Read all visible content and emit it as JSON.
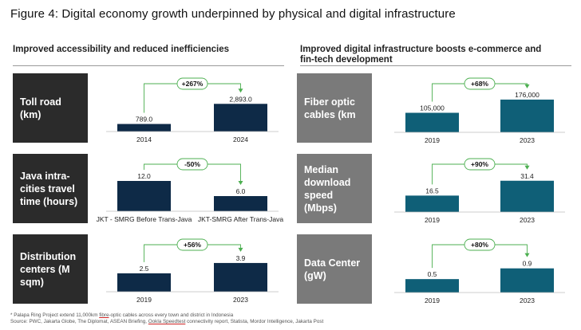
{
  "figure_title": "Figure 4: Digital economy growth underpinned by physical and digital infrastructure",
  "sections": {
    "left_title": "Improved accessibility and reduced inefficiencies",
    "right_title_line1": "Improved digital infrastructure boosts e-commerce and",
    "right_title_line2": "fin-tech development"
  },
  "panels": {
    "toll_road_line1": "Toll road",
    "toll_road_line2": "(km)",
    "java_line1": "Java intra-",
    "java_line2": "cities travel",
    "java_line3": "time (hours)",
    "dist_line1": "Distribution",
    "dist_line2": "centers (M",
    "dist_line3": "sqm)",
    "fiber_line1": "Fiber optic",
    "fiber_line2": "cables (km",
    "median_line1": "Median",
    "median_line2": "download",
    "median_line3": "speed (Mbps)",
    "dc_line1": "Data Center",
    "dc_line2": "(gW)"
  },
  "footnotes": {
    "line1_pre": "* Palapa Ring Project extend 11,000km ",
    "line1_ul": "fibre",
    "line1_post": "-optic cables across every town and district in Indonesia",
    "line2_pre": "Source: PWC, Jakarta Globe, The Diplomat, ASEAN Briefing, ",
    "line2_ul": "Ookla Speedtest",
    "line2_post": " connectivity report, Statista, Mordor Intelligence, Jakarta Post"
  },
  "colors": {
    "dark_bar": "#0e2a47",
    "teal_bar": "#0f5f77",
    "arrow_green": "#4caf50",
    "panel_dark": "#2b2b2b",
    "panel_gray": "#7a7a7a"
  },
  "chart_data": [
    {
      "type": "bar",
      "title": "Toll road (km)",
      "categories": [
        "2014",
        "2024"
      ],
      "values": [
        789.0,
        2893.0
      ],
      "labels": [
        "789.0",
        "2,893.0"
      ],
      "change": "+267%",
      "color": "dark",
      "ylim": [
        0,
        3000
      ]
    },
    {
      "type": "bar",
      "title": "Java intra-cities travel time (hours)",
      "categories": [
        "JKT - SMRG Before Trans-Java",
        "JKT-SMRG After Trans-Java"
      ],
      "values": [
        12.0,
        6.0
      ],
      "labels": [
        "12.0",
        "6.0"
      ],
      "change": "-50%",
      "color": "dark",
      "ylim": [
        0,
        12
      ]
    },
    {
      "type": "bar",
      "title": "Distribution centers (M sqm)",
      "categories": [
        "2019",
        "2023"
      ],
      "values": [
        2.5,
        3.9
      ],
      "labels": [
        "2.5",
        "3.9"
      ],
      "change": "+56%",
      "color": "dark",
      "ylim": [
        0,
        4
      ]
    },
    {
      "type": "bar",
      "title": "Fiber optic cables (km",
      "categories": [
        "2019",
        "2023"
      ],
      "values": [
        105000,
        176000
      ],
      "labels": [
        "105,000",
        "176,000"
      ],
      "change": "+68%",
      "color": "teal",
      "ylim": [
        0,
        180000
      ]
    },
    {
      "type": "bar",
      "title": "Median download speed (Mbps)",
      "categories": [
        "2019",
        "2023"
      ],
      "values": [
        16.5,
        31.4
      ],
      "labels": [
        "16.5",
        "31.4"
      ],
      "change": "+90%",
      "color": "teal",
      "ylim": [
        0,
        32
      ]
    },
    {
      "type": "bar",
      "title": "Data Center (gW)",
      "categories": [
        "2019",
        "2023"
      ],
      "values": [
        0.5,
        0.9
      ],
      "labels": [
        "0.5",
        "0.9"
      ],
      "change": "+80%",
      "color": "teal",
      "ylim": [
        0,
        0.92
      ]
    }
  ]
}
